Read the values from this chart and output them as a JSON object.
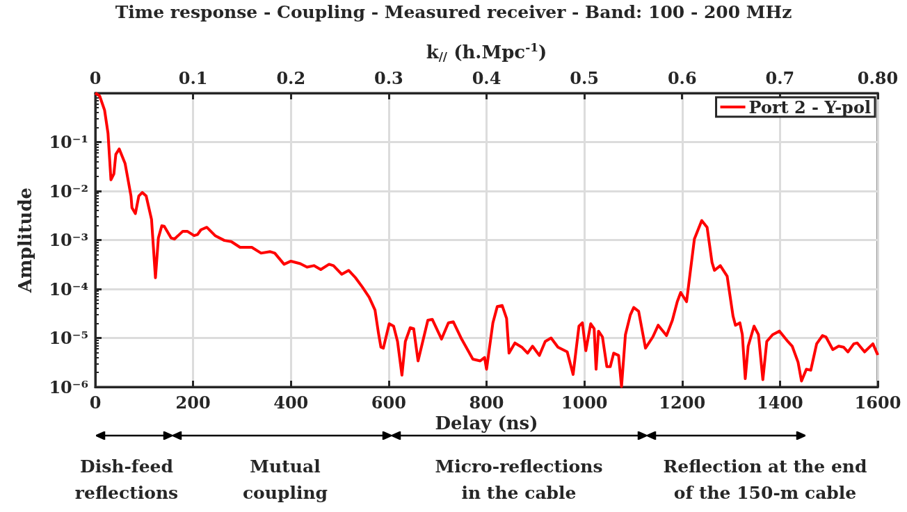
{
  "chart_data": {
    "type": "line",
    "title": "Time response - Coupling - Measured receiver - Band: 100 - 200 MHz",
    "xlabel": "Delay (ns)",
    "ylabel": "Amplitude",
    "x2label": "k$_{//}$ (h.Mpc$^{-1}$)",
    "xlim": [
      0,
      1600
    ],
    "xticks": [
      0,
      200,
      400,
      600,
      800,
      1000,
      1200,
      1400,
      1600
    ],
    "x2lim": [
      0,
      0.8
    ],
    "x2ticks": [
      0,
      0.1,
      0.2,
      0.3,
      0.4,
      0.5,
      0.6,
      0.7,
      {
        "value": 0.8,
        "label": "0.80"
      }
    ],
    "ylim": [
      1e-06,
      1
    ],
    "yticks": [
      {
        "value": 1e-06,
        "label": "10⁻⁶"
      },
      {
        "value": 1e-05,
        "label": "10⁻⁵"
      },
      {
        "value": 0.0001,
        "label": "10⁻⁴"
      },
      {
        "value": 0.001,
        "label": "10⁻³"
      },
      {
        "value": 0.01,
        "label": "10⁻²"
      },
      {
        "value": 0.1,
        "label": "10⁻¹"
      },
      {
        "value": 1,
        "label": null
      }
    ],
    "log": "y",
    "grid": true,
    "legend": "top right",
    "series": [
      {
        "name": "Port 2 - Y-pol",
        "color": "#ff0000",
        "x": [
          0,
          9,
          19,
          26,
          32,
          38,
          42,
          49,
          61,
          73,
          75,
          82,
          89,
          96,
          104,
          115,
          123,
          129,
          136,
          141,
          155,
          162,
          179,
          188,
          202,
          209,
          216,
          228,
          245,
          264,
          278,
          296,
          320,
          339,
          357,
          367,
          386,
          400,
          419,
          433,
          447,
          461,
          478,
          487,
          504,
          518,
          532,
          546,
          560,
          572,
          579,
          584,
          589,
          601,
          610,
          618,
          627,
          634,
          644,
          651,
          660,
          680,
          689,
          708,
          722,
          732,
          749,
          772,
          787,
          796,
          800,
          813,
          822,
          832,
          841,
          846,
          858,
          872,
          884,
          894,
          908,
          920,
          932,
          946,
          965,
          977,
          989,
          996,
          1003,
          1013,
          1020,
          1024,
          1029,
          1037,
          1046,
          1053,
          1060,
          1070,
          1076,
          1084,
          1094,
          1101,
          1111,
          1125,
          1140,
          1151,
          1168,
          1180,
          1190,
          1197,
          1209,
          1225,
          1240,
          1251,
          1261,
          1266,
          1278,
          1292,
          1304,
          1309,
          1318,
          1323,
          1329,
          1335,
          1347,
          1356,
          1365,
          1373,
          1385,
          1399,
          1416,
          1425,
          1437,
          1444,
          1454,
          1463,
          1475,
          1487,
          1494,
          1508,
          1520,
          1530,
          1539,
          1551,
          1558,
          1573,
          1590,
          1600
        ],
        "values": [
          1,
          0.87,
          0.447,
          0.151,
          0.017,
          0.0224,
          0.0562,
          0.0724,
          0.0363,
          0.00794,
          0.00457,
          0.00347,
          0.00794,
          0.00933,
          0.00794,
          0.00263,
          0.00017,
          0.0011,
          0.00195,
          0.00191,
          0.0011,
          0.00105,
          0.00151,
          0.00151,
          0.00123,
          0.00129,
          0.00162,
          0.00182,
          0.00123,
          0.00098,
          0.00093,
          0.00071,
          0.00071,
          0.00054,
          0.00058,
          0.00054,
          0.00032,
          0.00037,
          0.00033,
          0.00028,
          0.0003,
          0.00025,
          0.00032,
          0.0003,
          0.0002,
          0.00024,
          0.00017,
          0.00011,
          6.8e-05,
          3.7e-05,
          1.26e-05,
          6.5e-06,
          6.2e-06,
          1.95e-05,
          1.74e-05,
          8.5e-06,
          1.74e-06,
          8.5e-06,
          1.62e-05,
          1.55e-05,
          3.4e-06,
          2.3e-05,
          2.4e-05,
          9.5e-06,
          2.04e-05,
          2.14e-05,
          9.5e-06,
          3.7e-06,
          3.4e-06,
          4e-06,
          2.3e-06,
          2.04e-05,
          4.4e-05,
          4.6e-05,
          2.5e-05,
          4.9e-06,
          7.9e-06,
          6.5e-06,
          4.9e-06,
          6.8e-06,
          4.4e-06,
          8.5e-06,
          1e-05,
          6.5e-06,
          5.2e-06,
          1.8e-06,
          1.74e-05,
          2.04e-05,
          5.5e-06,
          1.95e-05,
          1.55e-05,
          2.3e-06,
          1.38e-05,
          1.05e-05,
          2.6e-06,
          2.6e-06,
          4.9e-06,
          4.4e-06,
          1.02e-06,
          1.17e-05,
          2.95e-05,
          4.2e-05,
          3.5e-05,
          6.2e-06,
          1.05e-05,
          1.82e-05,
          1.12e-05,
          2.3e-05,
          5.5e-05,
          8.5e-05,
          5.5e-05,
          0.00105,
          0.0025,
          0.00182,
          0.00035,
          0.00024,
          0.0003,
          0.000182,
          2.8e-05,
          1.82e-05,
          2.04e-05,
          1.17e-05,
          1.48e-06,
          6.8e-06,
          1.74e-05,
          1.17e-05,
          1.41e-06,
          8.5e-06,
          1.17e-05,
          1.38e-05,
          8.5e-06,
          6.8e-06,
          3.2e-06,
          1.32e-06,
          2.3e-06,
          2.2e-06,
          7.6e-06,
          1.12e-05,
          1.05e-05,
          5.8e-06,
          6.8e-06,
          6.5e-06,
          5.2e-06,
          7.6e-06,
          7.9e-06,
          5.2e-06,
          7.6e-06,
          4.5e-06
        ]
      }
    ],
    "annotations": [
      "Dish-feed\nreflections",
      "Mutual\ncoupling",
      "Micro-reflections\nin the cable",
      "Reflection at the end\nof the 150-m cable"
    ]
  }
}
